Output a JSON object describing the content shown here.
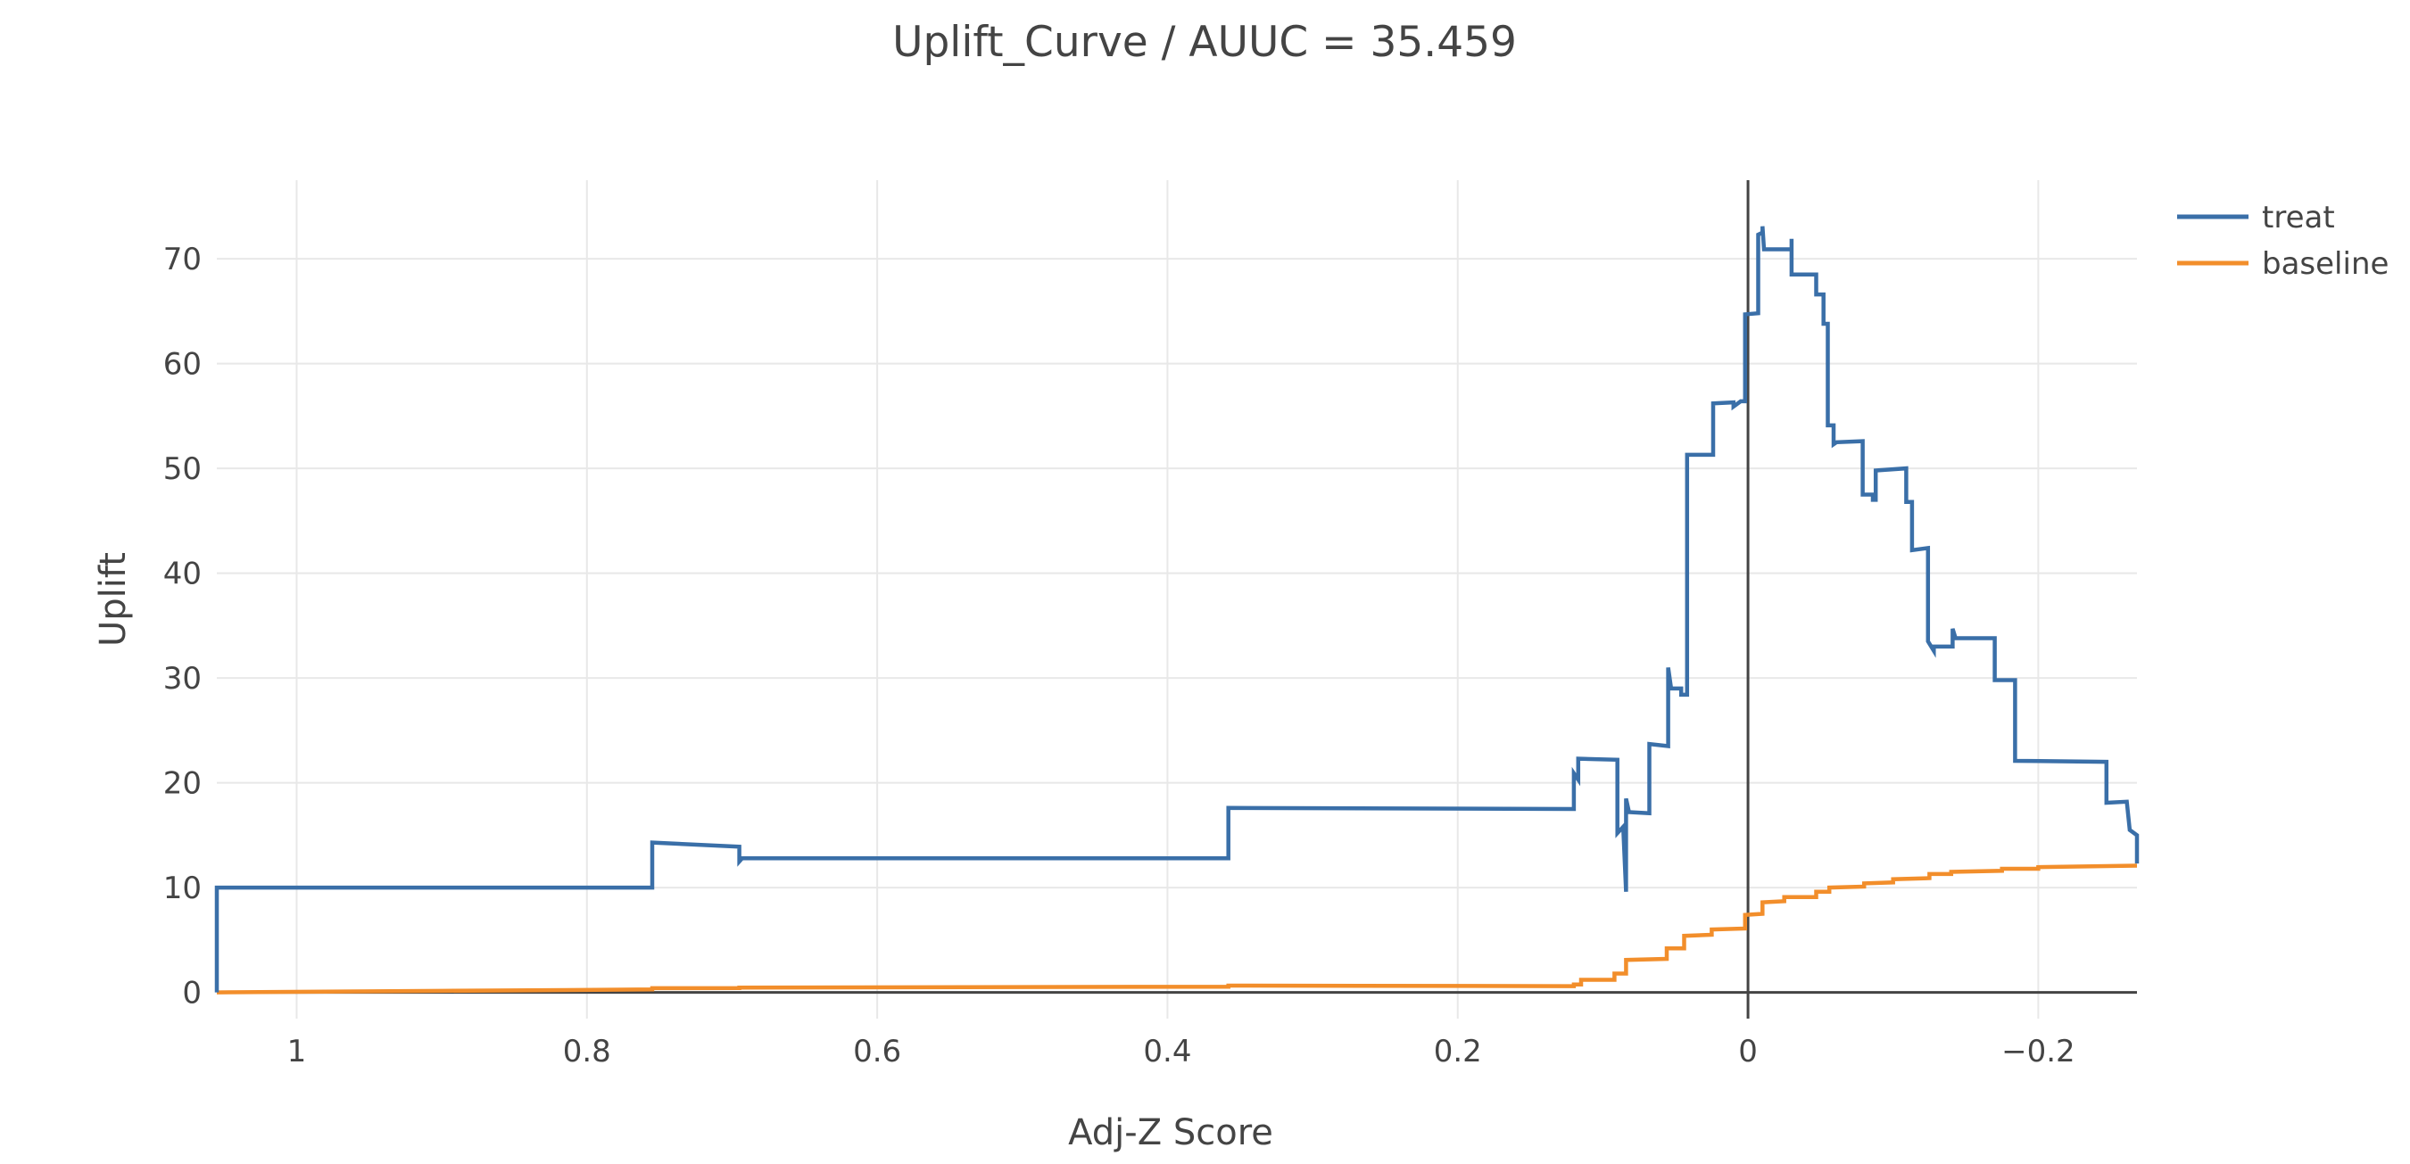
{
  "chart_data": {
    "type": "line",
    "title": "Uplift_Curve / AUUC = 35.459",
    "xlabel": "Adj-Z Score",
    "ylabel": "Uplift",
    "x_reversed": true,
    "xlim": [
      1.055,
      -0.268
    ],
    "ylim": [
      -2.5,
      77.5
    ],
    "x_ticks": [
      {
        "value": 1,
        "label": "1"
      },
      {
        "value": 0.8,
        "label": "0.8"
      },
      {
        "value": 0.6,
        "label": "0.6"
      },
      {
        "value": 0.4,
        "label": "0.4"
      },
      {
        "value": 0.2,
        "label": "0.2"
      },
      {
        "value": 0,
        "label": "0"
      },
      {
        "value": -0.2,
        "label": "−0.2"
      }
    ],
    "y_ticks": [
      {
        "value": 0,
        "label": "0"
      },
      {
        "value": 10,
        "label": "10"
      },
      {
        "value": 20,
        "label": "20"
      },
      {
        "value": 30,
        "label": "30"
      },
      {
        "value": 40,
        "label": "40"
      },
      {
        "value": 50,
        "label": "50"
      },
      {
        "value": 60,
        "label": "60"
      },
      {
        "value": 70,
        "label": "70"
      }
    ],
    "grid": true,
    "legend_position": "top-right",
    "series": [
      {
        "name": "treat",
        "color": "#3a6fa8",
        "points": [
          [
            1.055,
            0
          ],
          [
            1.055,
            10
          ],
          [
            0.755,
            10
          ],
          [
            0.755,
            14.3
          ],
          [
            0.695,
            13.9
          ],
          [
            0.695,
            12.5
          ],
          [
            0.693,
            12.8
          ],
          [
            0.358,
            12.8
          ],
          [
            0.358,
            17.6
          ],
          [
            0.12,
            17.5
          ],
          [
            0.12,
            20.9
          ],
          [
            0.117,
            20.3
          ],
          [
            0.117,
            22.3
          ],
          [
            0.09,
            22.2
          ],
          [
            0.09,
            15.2
          ],
          [
            0.086,
            15.8
          ],
          [
            0.084,
            9.6
          ],
          [
            0.084,
            18.5
          ],
          [
            0.082,
            17.2
          ],
          [
            0.068,
            17.1
          ],
          [
            0.068,
            23.7
          ],
          [
            0.055,
            23.5
          ],
          [
            0.055,
            31
          ],
          [
            0.053,
            29
          ],
          [
            0.046,
            29
          ],
          [
            0.046,
            28.4
          ],
          [
            0.042,
            28.4
          ],
          [
            0.042,
            51.3
          ],
          [
            0.024,
            51.3
          ],
          [
            0.024,
            56.2
          ],
          [
            0.01,
            56.3
          ],
          [
            0.01,
            55.9
          ],
          [
            0.005,
            56.4
          ],
          [
            0.002,
            56.4
          ],
          [
            0.002,
            64.7
          ],
          [
            -0.007,
            64.8
          ],
          [
            -0.007,
            72.3
          ],
          [
            -0.01,
            72.5
          ],
          [
            -0.01,
            73.1
          ],
          [
            -0.011,
            70.9
          ],
          [
            -0.03,
            70.9
          ],
          [
            -0.03,
            71.9
          ],
          [
            -0.03,
            68.5
          ],
          [
            -0.047,
            68.5
          ],
          [
            -0.047,
            66.6
          ],
          [
            -0.052,
            66.6
          ],
          [
            -0.052,
            63.8
          ],
          [
            -0.055,
            63.8
          ],
          [
            -0.055,
            54.1
          ],
          [
            -0.059,
            54.1
          ],
          [
            -0.059,
            52.3
          ],
          [
            -0.061,
            52.5
          ],
          [
            -0.079,
            52.6
          ],
          [
            -0.079,
            47.5
          ],
          [
            -0.086,
            47.5
          ],
          [
            -0.086,
            47
          ],
          [
            -0.088,
            47
          ],
          [
            -0.088,
            49.8
          ],
          [
            -0.109,
            50
          ],
          [
            -0.109,
            46.8
          ],
          [
            -0.113,
            46.8
          ],
          [
            -0.113,
            42.2
          ],
          [
            -0.124,
            42.4
          ],
          [
            -0.124,
            33.5
          ],
          [
            -0.128,
            32.6
          ],
          [
            -0.128,
            33
          ],
          [
            -0.141,
            33
          ],
          [
            -0.141,
            34.7
          ],
          [
            -0.143,
            33.8
          ],
          [
            -0.17,
            33.8
          ],
          [
            -0.17,
            29.8
          ],
          [
            -0.184,
            29.8
          ],
          [
            -0.184,
            22.1
          ],
          [
            -0.247,
            22
          ],
          [
            -0.247,
            18.1
          ],
          [
            -0.261,
            18.2
          ],
          [
            -0.263,
            15.5
          ],
          [
            -0.268,
            15
          ],
          [
            -0.268,
            12.3
          ]
        ]
      },
      {
        "name": "baseline",
        "color": "#f28e2b",
        "points": [
          [
            1.055,
            0
          ],
          [
            0.9,
            0.15
          ],
          [
            0.755,
            0.28
          ],
          [
            0.755,
            0.4
          ],
          [
            0.695,
            0.42
          ],
          [
            0.695,
            0.45
          ],
          [
            0.358,
            0.55
          ],
          [
            0.358,
            0.65
          ],
          [
            0.12,
            0.6
          ],
          [
            0.12,
            0.75
          ],
          [
            0.115,
            0.75
          ],
          [
            0.115,
            1.2
          ],
          [
            0.092,
            1.2
          ],
          [
            0.092,
            1.8
          ],
          [
            0.084,
            1.8
          ],
          [
            0.084,
            3.1
          ],
          [
            0.056,
            3.2
          ],
          [
            0.056,
            4.2
          ],
          [
            0.044,
            4.2
          ],
          [
            0.044,
            5.4
          ],
          [
            0.025,
            5.5
          ],
          [
            0.025,
            6
          ],
          [
            0.002,
            6.1
          ],
          [
            0.002,
            7.4
          ],
          [
            -0.01,
            7.5
          ],
          [
            -0.01,
            8.6
          ],
          [
            -0.025,
            8.7
          ],
          [
            -0.025,
            9.1
          ],
          [
            -0.047,
            9.1
          ],
          [
            -0.047,
            9.6
          ],
          [
            -0.056,
            9.6
          ],
          [
            -0.056,
            10
          ],
          [
            -0.08,
            10.1
          ],
          [
            -0.08,
            10.4
          ],
          [
            -0.1,
            10.5
          ],
          [
            -0.1,
            10.8
          ],
          [
            -0.125,
            10.9
          ],
          [
            -0.125,
            11.3
          ],
          [
            -0.14,
            11.3
          ],
          [
            -0.14,
            11.5
          ],
          [
            -0.175,
            11.6
          ],
          [
            -0.175,
            11.8
          ],
          [
            -0.2,
            11.8
          ],
          [
            -0.2,
            11.95
          ],
          [
            -0.268,
            12.1
          ]
        ]
      }
    ]
  }
}
